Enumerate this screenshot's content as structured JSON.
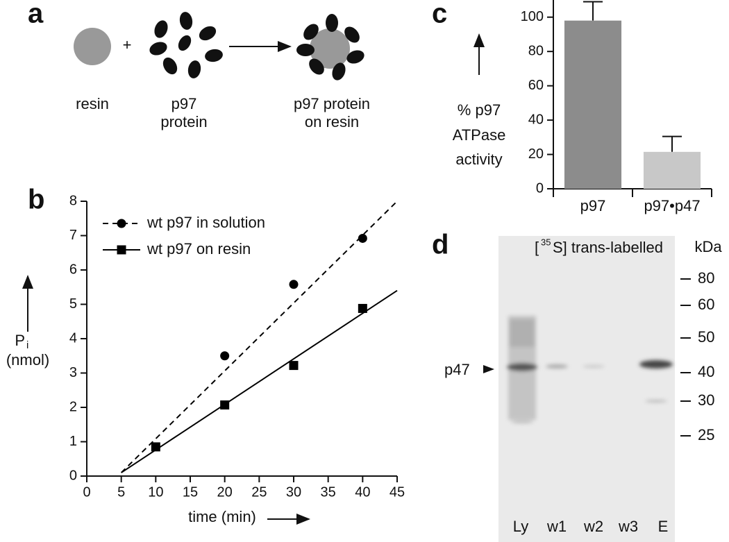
{
  "panel_a": {
    "label": "a",
    "resin": "resin",
    "plus": "+",
    "protein": [
      "p97",
      "protein"
    ],
    "product": [
      "p97 protein",
      "on resin"
    ]
  },
  "chart_data": [
    {
      "type": "scatter",
      "label": "b",
      "x_label": "time (min)",
      "y_label": [
        "P",
        "i",
        "(nmol)"
      ],
      "xlim": [
        0,
        45
      ],
      "xticks": [
        0,
        5,
        10,
        15,
        20,
        25,
        30,
        35,
        40,
        45
      ],
      "ylim": [
        0,
        8
      ],
      "yticks": [
        0,
        1,
        2,
        3,
        4,
        5,
        6,
        7,
        8
      ],
      "color": "#000000",
      "series": [
        {
          "name": "wt p97 in solution",
          "marker": "circle",
          "line": "dashed",
          "x": [
            20,
            30,
            40
          ],
          "values": [
            3.5,
            5.58,
            6.92
          ],
          "fit": {
            "x": [
              5,
              45
            ],
            "values": [
              0.1,
              8.0
            ]
          }
        },
        {
          "name": "wt p97 on resin",
          "marker": "square",
          "line": "solid",
          "x": [
            10,
            20,
            30,
            40
          ],
          "values": [
            0.85,
            2.07,
            3.22,
            4.88
          ],
          "fit": {
            "x": [
              5,
              45
            ],
            "values": [
              0.1,
              5.4
            ]
          }
        }
      ]
    },
    {
      "type": "bar",
      "label": "c",
      "y_label": [
        "% p97",
        "ATPase",
        "activity"
      ],
      "categories": [
        "p97",
        "p97•p47"
      ],
      "values": [
        98,
        21.5
      ],
      "errors": [
        11,
        9
      ],
      "colors": [
        "#8c8c8c",
        "#c8c8c8"
      ],
      "ylim": [
        0,
        110
      ],
      "yticks": [
        0,
        20,
        40,
        60,
        80,
        100
      ]
    }
  ],
  "panel_d": {
    "label": "d",
    "title": [
      "[",
      "35",
      "S] trans-labelled"
    ],
    "unit": "kDa",
    "markers": [
      80,
      60,
      50,
      40,
      30,
      25
    ],
    "band_label": "p47",
    "lanes": [
      "Ly",
      "w1",
      "w2",
      "w3",
      "E"
    ]
  }
}
